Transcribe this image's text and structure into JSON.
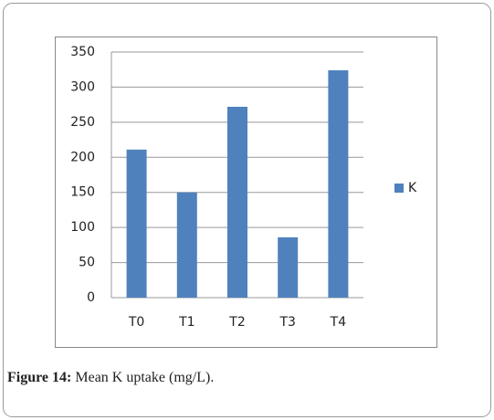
{
  "chart_data": {
    "type": "bar",
    "categories": [
      "T0",
      "T1",
      "T2",
      "T3",
      "T4"
    ],
    "series": [
      {
        "name": "K",
        "color": "#4f81bd",
        "values": [
          211,
          150,
          272,
          86,
          324
        ]
      }
    ],
    "ylim": [
      0,
      350
    ],
    "yticks": [
      0,
      50,
      100,
      150,
      200,
      250,
      300,
      350
    ],
    "grid": true,
    "legend": "right"
  },
  "caption": {
    "label": "Figure 14:",
    "text": "Mean K uptake (mg/L)."
  }
}
